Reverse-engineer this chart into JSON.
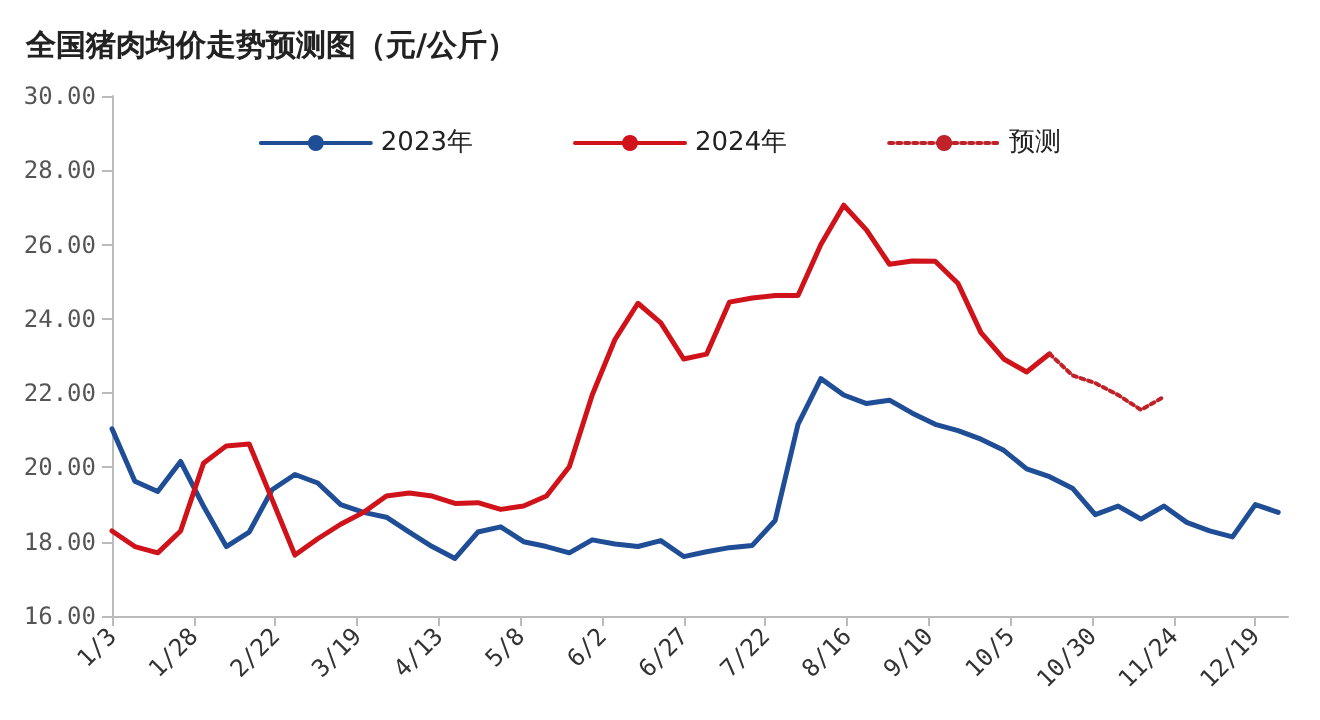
{
  "chart_data": {
    "type": "line",
    "title": "全国猪肉均价走势预测图（元/公斤）",
    "x": [
      "--01-03",
      "--01-10",
      "--01-17",
      "--01-24",
      "--01-31",
      "--02-07",
      "--02-14",
      "--02-21",
      "--02-28",
      "--03-07",
      "--03-14",
      "--03-21",
      "--03-28",
      "--04-04",
      "--04-11",
      "--04-18",
      "--04-25",
      "--05-02",
      "--05-09",
      "--05-16",
      "--05-23",
      "--05-30",
      "--06-06",
      "--06-13",
      "--06-20",
      "--06-27",
      "--07-04",
      "--07-11",
      "--07-18",
      "--07-25",
      "--08-01",
      "--08-08",
      "--08-15",
      "--08-22",
      "--08-29",
      "--09-05",
      "--09-12",
      "--09-19",
      "--09-26",
      "--10-03",
      "--10-10",
      "--10-17",
      "--10-24",
      "--10-31",
      "--11-07",
      "--11-14",
      "--11-21",
      "--11-28",
      "--12-05",
      "--12-12",
      "--12-19",
      "--12-26"
    ],
    "series": [
      {
        "name": "2023年",
        "color": "#1f4e96",
        "values": [
          21.04,
          19.63,
          19.35,
          20.16,
          18.96,
          17.87,
          18.26,
          19.4,
          19.81,
          19.58,
          19.0,
          18.79,
          18.66,
          18.26,
          17.87,
          17.55,
          18.26,
          18.4,
          18.0,
          17.87,
          17.7,
          18.05,
          17.94,
          17.87,
          18.03,
          17.6,
          17.73,
          17.84,
          17.9,
          18.57,
          21.16,
          22.39,
          21.95,
          21.72,
          21.81,
          21.46,
          21.16,
          20.99,
          20.76,
          20.46,
          19.96,
          19.75,
          19.44,
          18.73,
          18.96,
          18.61,
          18.96,
          18.52,
          18.29,
          18.13,
          19.0,
          18.79
        ]
      },
      {
        "name": "2024年",
        "color": "#d0131a",
        "values": [
          18.29,
          17.87,
          17.7,
          18.29,
          20.11,
          20.58,
          20.63,
          19.14,
          17.64,
          18.08,
          18.47,
          18.79,
          19.23,
          19.31,
          19.23,
          19.03,
          19.05,
          18.87,
          18.96,
          19.23,
          20.02,
          21.95,
          23.45,
          24.42,
          23.89,
          22.92,
          23.05,
          24.45,
          24.56,
          24.63,
          24.63,
          26.0,
          27.06,
          26.39,
          25.47,
          25.56,
          25.55,
          24.95,
          23.63,
          22.92,
          22.57,
          23.06,
          null,
          null,
          null,
          null,
          null,
          null,
          null,
          null,
          null,
          null
        ]
      },
      {
        "name": "预测",
        "color": "#c0222a",
        "line_style": "dotted",
        "values": [
          null,
          null,
          null,
          null,
          null,
          null,
          null,
          null,
          null,
          null,
          null,
          null,
          null,
          null,
          null,
          null,
          null,
          null,
          null,
          null,
          null,
          null,
          null,
          null,
          null,
          null,
          null,
          null,
          null,
          null,
          null,
          null,
          null,
          null,
          null,
          null,
          null,
          null,
          null,
          null,
          null,
          23.06,
          22.48,
          22.27,
          21.95,
          21.55,
          21.9,
          null,
          null,
          null,
          null,
          null
        ]
      }
    ],
    "xlim": [
      "--01-03",
      "--12-29"
    ],
    "xticks": [
      {
        "value": "--01-03",
        "label": "1/3"
      },
      {
        "value": "--01-28",
        "label": "1/28"
      },
      {
        "value": "--02-22",
        "label": "2/22"
      },
      {
        "value": "--03-19",
        "label": "3/19"
      },
      {
        "value": "--04-13",
        "label": "4/13"
      },
      {
        "value": "--05-08",
        "label": "5/8"
      },
      {
        "value": "--06-02",
        "label": "6/2"
      },
      {
        "value": "--06-27",
        "label": "6/27"
      },
      {
        "value": "--07-22",
        "label": "7/22"
      },
      {
        "value": "--08-16",
        "label": "8/16"
      },
      {
        "value": "--09-10",
        "label": "9/10"
      },
      {
        "value": "--10-05",
        "label": "10/5"
      },
      {
        "value": "--10-30",
        "label": "10/30"
      },
      {
        "value": "--11-24",
        "label": "11/24"
      },
      {
        "value": "--12-19",
        "label": "12/19"
      }
    ],
    "ylim": [
      16,
      30
    ],
    "yticks": [
      {
        "value": 16,
        "label": "16.00"
      },
      {
        "value": 18,
        "label": "18.00"
      },
      {
        "value": 20,
        "label": "20.00"
      },
      {
        "value": 22,
        "label": "22.00"
      },
      {
        "value": 24,
        "label": "24.00"
      },
      {
        "value": 26,
        "label": "26.00"
      },
      {
        "value": 28,
        "label": "28.00"
      },
      {
        "value": 30,
        "label": "30.00"
      }
    ],
    "grid": false,
    "legend": "top",
    "marker": "none",
    "line_style": "solid"
  }
}
